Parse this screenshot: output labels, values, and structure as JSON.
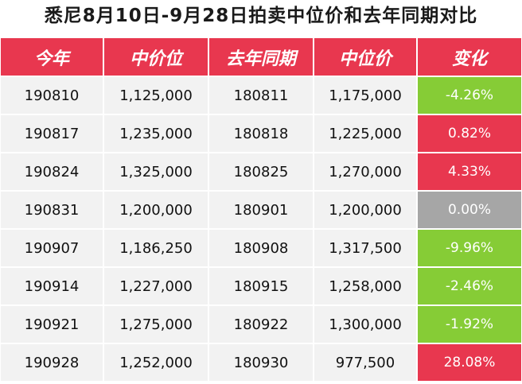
{
  "title": "悉尼8月10日-9月28日拍卖中位价和去年同期对比",
  "headers": [
    "今年",
    "中价位",
    "去年同期",
    "中位价",
    "变化"
  ],
  "colors": {
    "header_bg": "#e8374f",
    "row_bg": "#f2f2f2",
    "increase": "#e8374f",
    "decrease": "#86cc36",
    "unchanged": "#a6a6a6"
  },
  "rows": [
    {
      "year": "190810",
      "price": "1,125,000",
      "last_year": "180811",
      "last_price": "1,175,000",
      "change": "-4.26%",
      "trend": "green"
    },
    {
      "year": "190817",
      "price": "1,235,000",
      "last_year": "180818",
      "last_price": "1,225,000",
      "change": "0.82%",
      "trend": "red"
    },
    {
      "year": "190824",
      "price": "1,325,000",
      "last_year": "180825",
      "last_price": "1,270,000",
      "change": "4.33%",
      "trend": "red"
    },
    {
      "year": "190831",
      "price": "1,200,000",
      "last_year": "180901",
      "last_price": "1,200,000",
      "change": "0.00%",
      "trend": "gray"
    },
    {
      "year": "190907",
      "price": "1,186,250",
      "last_year": "180908",
      "last_price": "1,317,500",
      "change": "-9.96%",
      "trend": "green"
    },
    {
      "year": "190914",
      "price": "1,227,000",
      "last_year": "180915",
      "last_price": "1,258,000",
      "change": "-2.46%",
      "trend": "green"
    },
    {
      "year": "190921",
      "price": "1,275,000",
      "last_year": "180922",
      "last_price": "1,300,000",
      "change": "-1.92%",
      "trend": "green"
    },
    {
      "year": "190928",
      "price": "1,252,000",
      "last_year": "180930",
      "last_price": "977,500",
      "change": "28.08%",
      "trend": "red"
    }
  ]
}
